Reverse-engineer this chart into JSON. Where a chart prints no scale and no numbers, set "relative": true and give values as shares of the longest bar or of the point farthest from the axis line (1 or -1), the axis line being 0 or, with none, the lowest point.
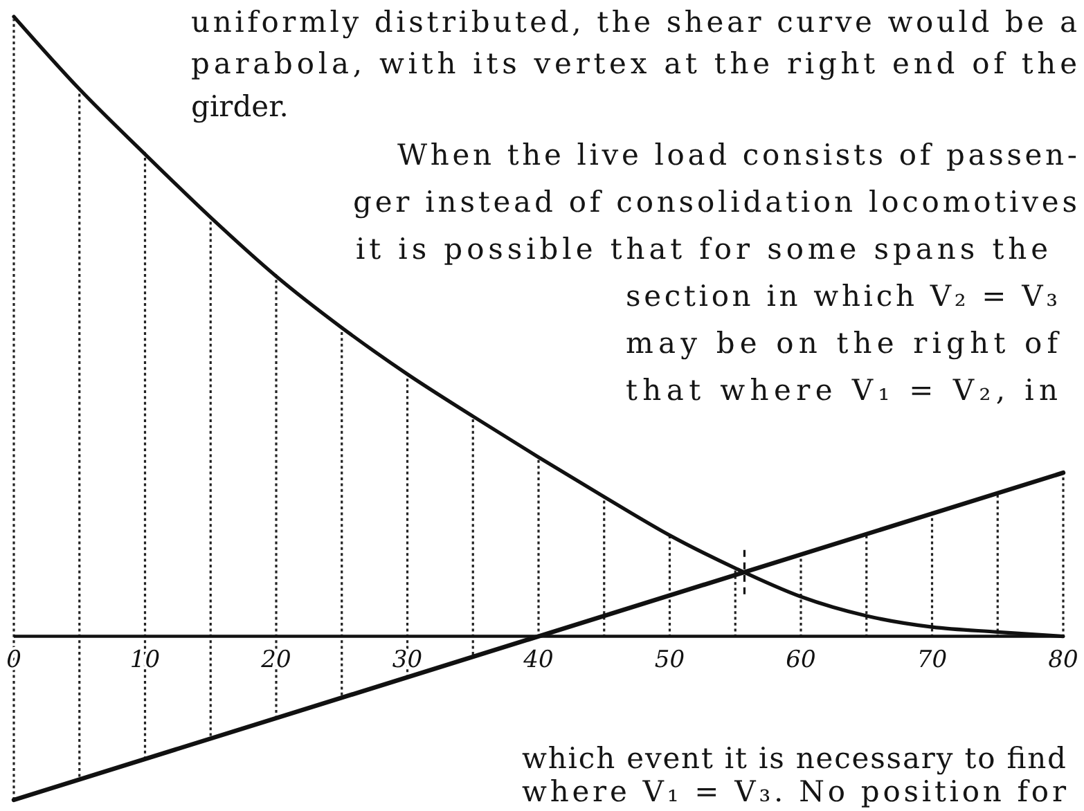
{
  "chart_data": {
    "type": "line",
    "relative": true,
    "x": [
      0,
      5,
      10,
      15,
      20,
      25,
      30,
      35,
      40,
      45,
      50,
      55,
      60,
      65,
      70,
      75,
      80
    ],
    "series": [
      {
        "color": "#111111",
        "values": [
          1,
          0.883,
          0.778,
          0.676,
          0.581,
          0.498,
          0.423,
          0.355,
          0.289,
          0.225,
          0.163,
          0.11,
          0.064,
          0.033,
          0.015,
          0.007,
          0
        ]
      },
      {
        "color": "#111111",
        "x": [
          0,
          80
        ],
        "values": [
          -0.264,
          0.264
        ]
      }
    ],
    "xlim": [
      0,
      80
    ],
    "xticks": [
      0,
      {
        "value": 5,
        "label": null
      },
      10,
      {
        "value": 15,
        "label": null
      },
      20,
      {
        "value": 25,
        "label": null
      },
      30,
      {
        "value": 35,
        "label": null
      },
      40,
      {
        "value": 45,
        "label": null
      },
      50,
      {
        "value": 55,
        "label": null
      },
      60,
      {
        "value": 65,
        "label": null
      },
      70,
      {
        "value": 75,
        "label": null
      },
      80
    ],
    "grid": "x",
    "annotations": [
      "uniformly distributed, the shear curve would be a",
      "parabola, with its vertex at the right end of the",
      "girder.",
      "When the live load consists of passen-",
      "ger instead of consolidation locomotives",
      "it is possible that for some spans the",
      "section in which V₂ = V₃",
      "may be on the right of",
      "that where V₁ = V₂, in",
      "which event it is necessary to find",
      "where V₁ = V₃. No position for"
    ]
  }
}
